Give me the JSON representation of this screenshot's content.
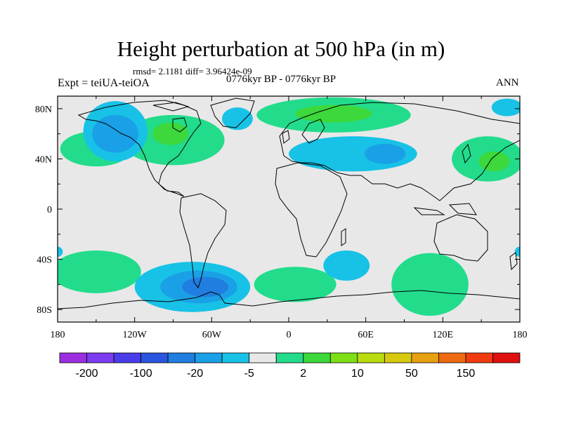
{
  "title": "Height perturbation at 500 hPa (in m)",
  "stats": "rmsd= 2.1181 diff= 3.96424e-09",
  "experiment": "Expt = teiUA-teiOA",
  "period": "0776kyr BP - 0776kyr BP",
  "season": "ANN",
  "map": {
    "lon_range": [
      -180,
      180
    ],
    "lat_range": [
      -90,
      90
    ],
    "lat_labels": [
      "80N",
      "40N",
      "0",
      "40S",
      "80S"
    ],
    "lon_labels": [
      "180",
      "120W",
      "60W",
      "0",
      "60E",
      "120E",
      "180"
    ],
    "ocean_color": "#e8e8e8"
  },
  "colorbar": {
    "colors": [
      "#9b2fe0",
      "#7c3cf0",
      "#4a3ce8",
      "#2a55e0",
      "#1f7ee0",
      "#1aa0e6",
      "#18c2e6",
      "#e8e8e8",
      "#22dc8c",
      "#3cd83c",
      "#7ee014",
      "#b8dc10",
      "#d8c810",
      "#e6a010",
      "#ee6a10",
      "#f03a10",
      "#e01010"
    ],
    "labels": [
      "-200",
      "-100",
      "-20",
      "-5",
      "2",
      "10",
      "50",
      "150"
    ]
  },
  "fields": [
    {
      "kind": "positive",
      "lon": -150,
      "lat": 48,
      "rlon": 28,
      "rlat": 14,
      "level": 1
    },
    {
      "kind": "positive",
      "lon": -90,
      "lat": 55,
      "rlon": 40,
      "rlat": 20,
      "level": 1
    },
    {
      "kind": "positive",
      "lon": -92,
      "lat": 60,
      "rlon": 14,
      "rlat": 9,
      "level": 2
    },
    {
      "kind": "positive",
      "lon": 35,
      "lat": 75,
      "rlon": 60,
      "rlat": 14,
      "level": 1
    },
    {
      "kind": "positive",
      "lon": 35,
      "lat": 76,
      "rlon": 30,
      "rlat": 7,
      "level": 2
    },
    {
      "kind": "positive",
      "lon": 155,
      "lat": 40,
      "rlon": 28,
      "rlat": 18,
      "level": 1
    },
    {
      "kind": "positive",
      "lon": 160,
      "lat": 38,
      "rlon": 12,
      "rlat": 8,
      "level": 2
    },
    {
      "kind": "positive",
      "lon": -150,
      "lat": -50,
      "rlon": 35,
      "rlat": 17,
      "level": 1
    },
    {
      "kind": "positive",
      "lon": 5,
      "lat": -60,
      "rlon": 32,
      "rlat": 14,
      "level": 1
    },
    {
      "kind": "positive",
      "lon": 110,
      "lat": -60,
      "rlon": 30,
      "rlat": 25,
      "level": 1
    },
    {
      "kind": "negative",
      "lon": -135,
      "lat": 62,
      "rlon": 25,
      "rlat": 24,
      "level": 1
    },
    {
      "kind": "negative",
      "lon": -135,
      "lat": 60,
      "rlon": 18,
      "rlat": 15,
      "level": 2
    },
    {
      "kind": "negative",
      "lon": -40,
      "lat": 72,
      "rlon": 12,
      "rlat": 9,
      "level": 1
    },
    {
      "kind": "negative",
      "lon": 50,
      "lat": 44,
      "rlon": 50,
      "rlat": 14,
      "level": 1
    },
    {
      "kind": "negative",
      "lon": 75,
      "lat": 44,
      "rlon": 16,
      "rlat": 8,
      "level": 2
    },
    {
      "kind": "negative",
      "lon": 170,
      "lat": 81,
      "rlon": 12,
      "rlat": 7,
      "level": 1
    },
    {
      "kind": "negative",
      "lon": 45,
      "lat": -45,
      "rlon": 18,
      "rlat": 12,
      "level": 1
    },
    {
      "kind": "negative",
      "lon": -75,
      "lat": -62,
      "rlon": 45,
      "rlat": 20,
      "level": 1
    },
    {
      "kind": "negative",
      "lon": -70,
      "lat": -62,
      "rlon": 30,
      "rlat": 13,
      "level": 2
    },
    {
      "kind": "negative",
      "lon": -65,
      "lat": -62,
      "rlon": 18,
      "rlat": 8,
      "level": 3
    },
    {
      "kind": "negative",
      "lon": -180,
      "lat": -34,
      "rlon": 4,
      "rlat": 4,
      "level": 1
    },
    {
      "kind": "negative",
      "lon": 180,
      "lat": -34,
      "rlon": 4,
      "rlat": 4,
      "level": 1
    }
  ]
}
